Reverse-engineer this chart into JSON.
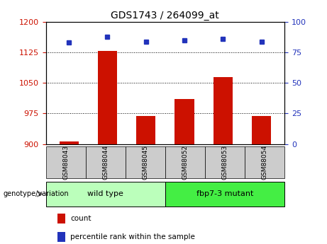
{
  "title": "GDS1743 / 264099_at",
  "samples": [
    "GSM88043",
    "GSM88044",
    "GSM88045",
    "GSM88052",
    "GSM88053",
    "GSM88054"
  ],
  "counts": [
    907,
    1128,
    968,
    1010,
    1065,
    968
  ],
  "percentile_ranks": [
    83,
    88,
    84,
    85,
    86,
    84
  ],
  "ylim_left": [
    900,
    1200
  ],
  "ylim_right": [
    0,
    100
  ],
  "yticks_left": [
    900,
    975,
    1050,
    1125,
    1200
  ],
  "yticks_right": [
    0,
    25,
    50,
    75,
    100
  ],
  "bar_color": "#cc1100",
  "dot_color": "#2233bb",
  "group_labels": [
    "wild type",
    "fbp7-3 mutant"
  ],
  "group_colors": [
    "#bbffbb",
    "#44ee44"
  ],
  "legend_label_bar": "count",
  "legend_label_dot": "percentile rank within the sample",
  "genotype_label": "genotype/variation",
  "left_tick_color": "#cc1100",
  "right_tick_color": "#2233bb",
  "grid_color": "#000000",
  "sample_box_color": "#cccccc"
}
